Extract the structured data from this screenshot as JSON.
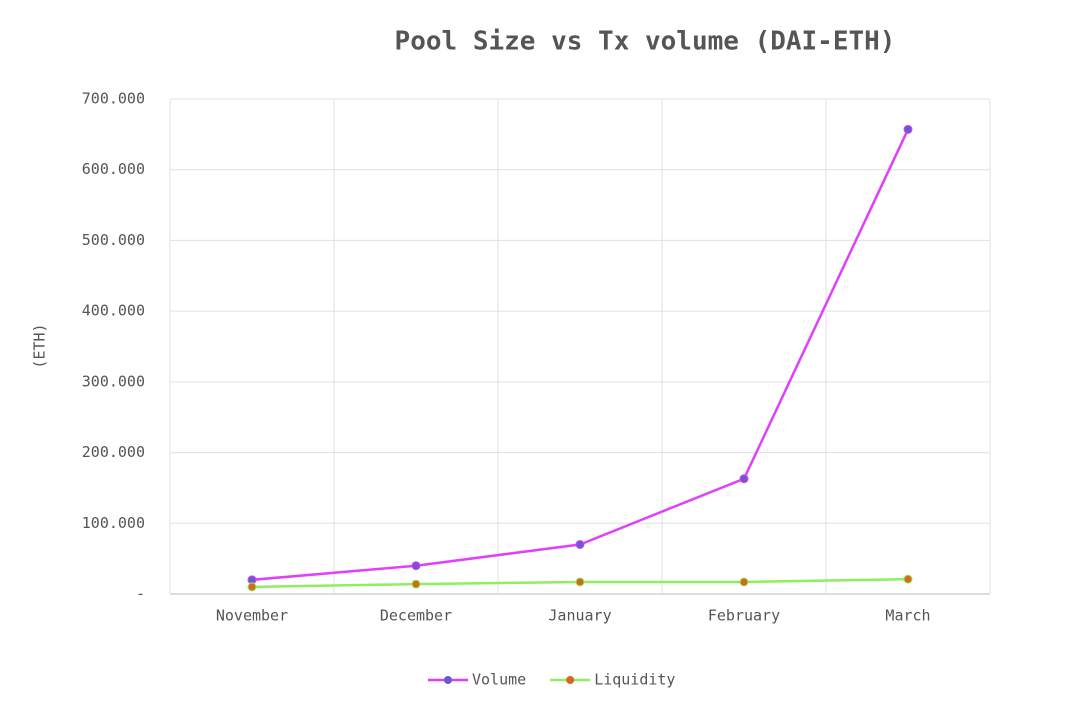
{
  "chart_data": {
    "type": "line",
    "title": "Pool Size vs Tx volume (DAI-ETH)",
    "y_label": "(ETH)",
    "categories": [
      "November",
      "December",
      "January",
      "February",
      "March"
    ],
    "series": [
      {
        "name": "Volume",
        "color": "#e040fb",
        "marker_color": "#6a5acd",
        "values": [
          20000,
          40000,
          70000,
          163000,
          657000
        ]
      },
      {
        "name": "Liquidity",
        "color": "#90ee60",
        "marker_color": "#d2691e",
        "values": [
          10000,
          14000,
          17000,
          17000,
          21000
        ]
      }
    ],
    "ylim": [
      0,
      700000
    ],
    "yticks": [
      {
        "value": 0,
        "label": "-"
      },
      {
        "value": 100000,
        "label": "100.000"
      },
      {
        "value": 200000,
        "label": "200.000"
      },
      {
        "value": 300000,
        "label": "300.000"
      },
      {
        "value": 400000,
        "label": "400.000"
      },
      {
        "value": 500000,
        "label": "500.000"
      },
      {
        "value": 600000,
        "label": "600.000"
      },
      {
        "value": 700000,
        "label": "700.000"
      }
    ],
    "grid": true,
    "legend": "bottom"
  }
}
